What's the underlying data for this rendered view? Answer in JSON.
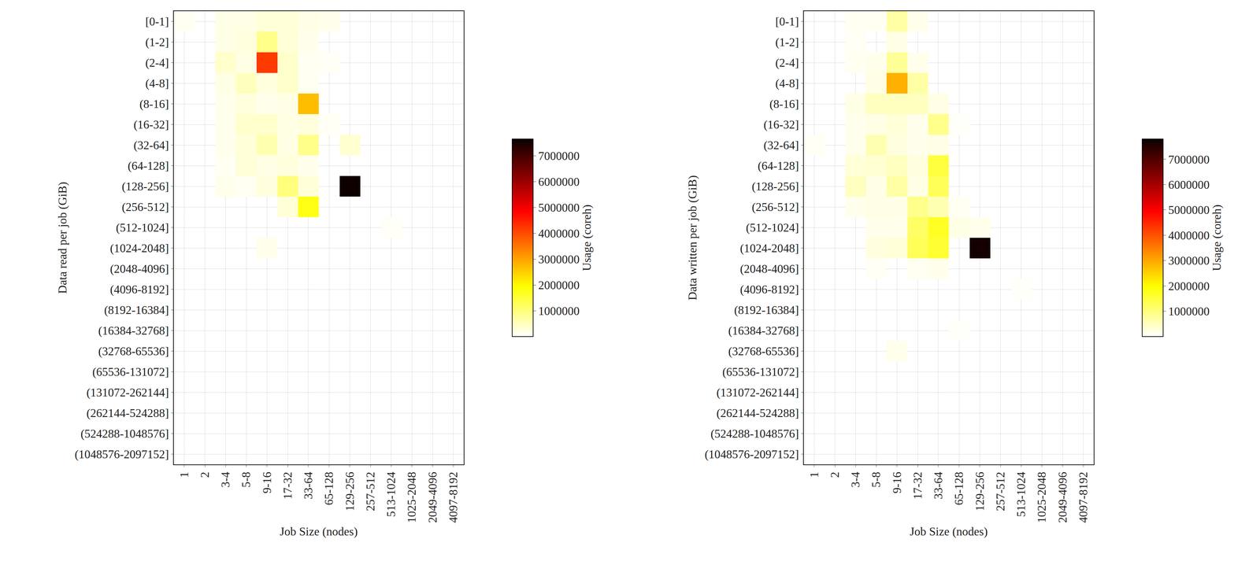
{
  "chart_data": [
    {
      "type": "heatmap",
      "grid": true,
      "x_label": "Job Size (nodes)",
      "y_label": "Data read per job (GiB)",
      "categories": [
        "1",
        "2",
        "3-4",
        "5-8",
        "9-16",
        "17-32",
        "33-64",
        "65-128",
        "129-256",
        "257-512",
        "513-1024",
        "1025-2048",
        "2049-4096",
        "4097-8192"
      ],
      "rows": [
        "[0-1]",
        "(1-2]",
        "(2-4]",
        "(4-8]",
        "(8-16]",
        "(16-32]",
        "(32-64]",
        "(64-128]",
        "(128-256]",
        "(256-512]",
        "(512-1024]",
        "(1024-2048]",
        "(2048-4096]",
        "(4096-8192]",
        "(8192-16384]",
        "(16384-32768]",
        "(32768-65536]",
        "(65536-131072]",
        "(131072-262144]",
        "(262144-524288]",
        "(524288-1048576]",
        "(1048576-2097152]"
      ],
      "cells": [
        [
          100000,
          null,
          200000,
          200000,
          300000,
          300000,
          200000,
          150000,
          null,
          null,
          null,
          null,
          null,
          null
        ],
        [
          null,
          null,
          200000,
          250000,
          900000,
          300000,
          150000,
          null,
          null,
          null,
          null,
          null,
          null,
          null
        ],
        [
          null,
          null,
          400000,
          200000,
          4200000,
          400000,
          100000,
          80000,
          null,
          null,
          null,
          null,
          null,
          null
        ],
        [
          null,
          null,
          200000,
          500000,
          250000,
          400000,
          100000,
          null,
          null,
          null,
          null,
          null,
          null,
          null
        ],
        [
          null,
          null,
          150000,
          250000,
          150000,
          200000,
          2700000,
          null,
          null,
          null,
          null,
          null,
          null,
          null
        ],
        [
          null,
          null,
          150000,
          400000,
          400000,
          200000,
          250000,
          80000,
          null,
          null,
          null,
          null,
          null,
          null
        ],
        [
          null,
          null,
          150000,
          300000,
          600000,
          200000,
          900000,
          null,
          350000,
          null,
          null,
          null,
          null,
          null
        ],
        [
          null,
          null,
          100000,
          300000,
          200000,
          250000,
          150000,
          null,
          null,
          null,
          null,
          null,
          null,
          null
        ],
        [
          null,
          null,
          150000,
          100000,
          250000,
          1000000,
          300000,
          null,
          7600000,
          null,
          null,
          null,
          null,
          null
        ],
        [
          null,
          null,
          null,
          null,
          null,
          300000,
          1800000,
          null,
          null,
          null,
          null,
          null,
          null,
          null
        ],
        [
          null,
          null,
          null,
          null,
          null,
          null,
          null,
          null,
          null,
          null,
          50000,
          null,
          null,
          null
        ],
        [
          null,
          null,
          null,
          null,
          150000,
          null,
          null,
          null,
          null,
          null,
          null,
          null,
          null,
          null
        ],
        [
          null,
          null,
          null,
          null,
          null,
          null,
          null,
          null,
          null,
          null,
          null,
          null,
          null,
          null
        ],
        [
          null,
          null,
          null,
          null,
          null,
          null,
          null,
          null,
          null,
          null,
          null,
          null,
          null,
          null
        ],
        [
          null,
          null,
          null,
          null,
          null,
          null,
          null,
          null,
          null,
          null,
          null,
          null,
          null,
          null
        ],
        [
          null,
          null,
          null,
          null,
          null,
          null,
          null,
          null,
          null,
          null,
          null,
          null,
          null,
          null
        ],
        [
          null,
          null,
          null,
          null,
          null,
          null,
          null,
          null,
          null,
          null,
          null,
          null,
          null,
          null
        ],
        [
          null,
          null,
          null,
          null,
          null,
          null,
          null,
          null,
          null,
          null,
          null,
          null,
          null,
          null
        ],
        [
          null,
          null,
          null,
          null,
          null,
          null,
          null,
          null,
          null,
          null,
          null,
          null,
          null,
          null
        ],
        [
          null,
          null,
          null,
          null,
          null,
          null,
          null,
          null,
          null,
          null,
          null,
          null,
          null,
          null
        ],
        [
          null,
          null,
          null,
          null,
          null,
          null,
          null,
          null,
          null,
          null,
          null,
          null,
          null,
          null
        ],
        [
          null,
          null,
          null,
          null,
          null,
          null,
          null,
          null,
          null,
          null,
          null,
          null,
          null,
          null
        ]
      ],
      "colorbar": {
        "title": "Usage (coreh)",
        "range": [
          0,
          7650000
        ],
        "ticks": [
          1000000,
          2000000,
          3000000,
          4000000,
          5000000,
          6000000,
          7000000
        ]
      }
    },
    {
      "type": "heatmap",
      "grid": true,
      "x_label": "Job Size (nodes)",
      "y_label": "Data written per job (GiB)",
      "categories": [
        "1",
        "2",
        "3-4",
        "5-8",
        "9-16",
        "17-32",
        "33-64",
        "65-128",
        "129-256",
        "257-512",
        "513-1024",
        "1025-2048",
        "2049-4096",
        "4097-8192"
      ],
      "rows": [
        "[0-1]",
        "(1-2]",
        "(2-4]",
        "(4-8]",
        "(8-16]",
        "(16-32]",
        "(32-64]",
        "(64-128]",
        "(128-256]",
        "(256-512]",
        "(512-1024]",
        "(1024-2048]",
        "(2048-4096]",
        "(4096-8192]",
        "(8192-16384]",
        "(16384-32768]",
        "(32768-65536]",
        "(65536-131072]",
        "(131072-262144]",
        "(262144-524288]",
        "(524288-1048576]",
        "(1048576-2097152]"
      ],
      "cells": [
        [
          null,
          null,
          100000,
          100000,
          700000,
          150000,
          null,
          null,
          null,
          null,
          null,
          null,
          null,
          null
        ],
        [
          null,
          null,
          80000,
          null,
          200000,
          null,
          null,
          null,
          null,
          null,
          null,
          null,
          null,
          null
        ],
        [
          null,
          null,
          100000,
          150000,
          800000,
          150000,
          null,
          null,
          null,
          null,
          null,
          null,
          null,
          null
        ],
        [
          null,
          null,
          null,
          200000,
          2900000,
          700000,
          null,
          null,
          null,
          null,
          null,
          null,
          null,
          null
        ],
        [
          null,
          null,
          200000,
          500000,
          500000,
          500000,
          200000,
          null,
          null,
          null,
          null,
          null,
          null,
          null
        ],
        [
          null,
          null,
          150000,
          200000,
          300000,
          150000,
          900000,
          50000,
          null,
          null,
          null,
          null,
          null,
          null
        ],
        [
          80000,
          null,
          150000,
          600000,
          250000,
          150000,
          200000,
          null,
          null,
          null,
          null,
          null,
          null,
          null
        ],
        [
          null,
          null,
          300000,
          350000,
          500000,
          250000,
          1500000,
          null,
          null,
          null,
          null,
          null,
          null,
          null
        ],
        [
          null,
          null,
          500000,
          200000,
          700000,
          200000,
          1300000,
          null,
          null,
          null,
          null,
          null,
          null,
          null
        ],
        [
          null,
          null,
          150000,
          200000,
          200000,
          900000,
          600000,
          100000,
          null,
          null,
          null,
          null,
          null,
          null
        ],
        [
          null,
          null,
          null,
          150000,
          150000,
          1200000,
          1700000,
          200000,
          150000,
          null,
          null,
          null,
          null,
          null
        ],
        [
          null,
          null,
          null,
          250000,
          300000,
          1300000,
          1600000,
          null,
          7700000,
          null,
          null,
          null,
          null,
          null
        ],
        [
          null,
          null,
          null,
          80000,
          null,
          100000,
          150000,
          null,
          null,
          null,
          null,
          null,
          null,
          null
        ],
        [
          null,
          null,
          null,
          null,
          null,
          null,
          null,
          null,
          null,
          null,
          50000,
          null,
          null,
          null
        ],
        [
          null,
          null,
          null,
          null,
          null,
          null,
          null,
          null,
          null,
          null,
          null,
          null,
          null,
          null
        ],
        [
          null,
          null,
          null,
          null,
          null,
          null,
          null,
          50000,
          null,
          null,
          null,
          null,
          null,
          null
        ],
        [
          null,
          null,
          null,
          null,
          150000,
          null,
          null,
          null,
          null,
          null,
          null,
          null,
          null,
          null
        ],
        [
          null,
          null,
          null,
          null,
          null,
          null,
          null,
          null,
          null,
          null,
          null,
          null,
          null,
          null
        ],
        [
          null,
          null,
          null,
          null,
          null,
          null,
          null,
          null,
          null,
          null,
          null,
          null,
          null,
          null
        ],
        [
          null,
          null,
          null,
          null,
          null,
          null,
          null,
          null,
          null,
          null,
          null,
          null,
          null,
          null
        ],
        [
          null,
          null,
          null,
          null,
          null,
          null,
          null,
          null,
          null,
          null,
          null,
          null,
          null,
          null
        ],
        [
          null,
          null,
          null,
          null,
          null,
          null,
          null,
          null,
          null,
          null,
          null,
          null,
          null,
          null
        ]
      ],
      "colorbar": {
        "title": "Usage (coreh)",
        "range": [
          0,
          7800000
        ],
        "ticks": [
          1000000,
          2000000,
          3000000,
          4000000,
          5000000,
          6000000,
          7000000
        ]
      }
    }
  ]
}
